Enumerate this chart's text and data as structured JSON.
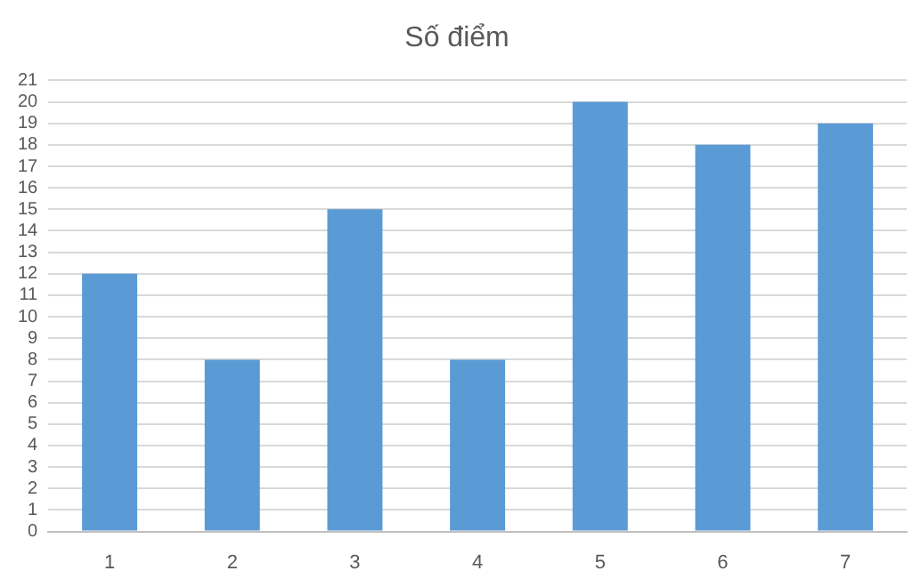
{
  "chart_data": {
    "type": "bar",
    "title": "Số điểm",
    "categories": [
      "1",
      "2",
      "3",
      "4",
      "5",
      "6",
      "7"
    ],
    "values": [
      12,
      8,
      15,
      8,
      20,
      18,
      19
    ],
    "color": "#5b9bd5",
    "ylim": [
      0,
      21
    ],
    "yticks": [
      0,
      1,
      2,
      3,
      4,
      5,
      6,
      7,
      8,
      9,
      10,
      11,
      12,
      13,
      14,
      15,
      16,
      17,
      18,
      19,
      20,
      21
    ],
    "grid": "y",
    "legend": false
  }
}
